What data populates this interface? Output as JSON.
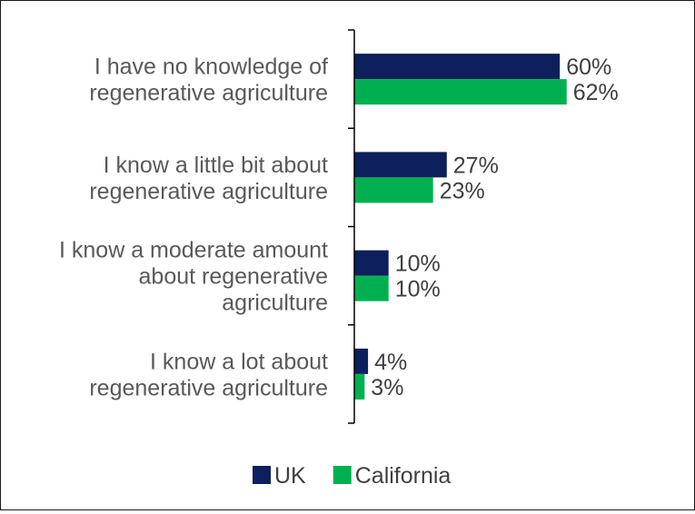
{
  "chart_data": {
    "type": "bar",
    "orientation": "horizontal",
    "categories": [
      [
        "I have no knowledge of",
        "regenerative agriculture"
      ],
      [
        "I know a little bit about",
        "regenerative agriculture"
      ],
      [
        "I know a moderate amount",
        "about regenerative",
        "agriculture"
      ],
      [
        "I know a lot about",
        "regenerative agriculture"
      ]
    ],
    "series": [
      {
        "name": "UK",
        "color": "#0d1f5c",
        "values": [
          60,
          27,
          10,
          4
        ],
        "labels": [
          "60%",
          "27%",
          "10%",
          "4%"
        ]
      },
      {
        "name": "California",
        "color": "#00b050",
        "values": [
          62,
          23,
          10,
          3
        ],
        "labels": [
          "62%",
          "23%",
          "10%",
          "3%"
        ]
      }
    ],
    "xlim": [
      0,
      100
    ],
    "grid": false,
    "legend_position": "bottom"
  }
}
